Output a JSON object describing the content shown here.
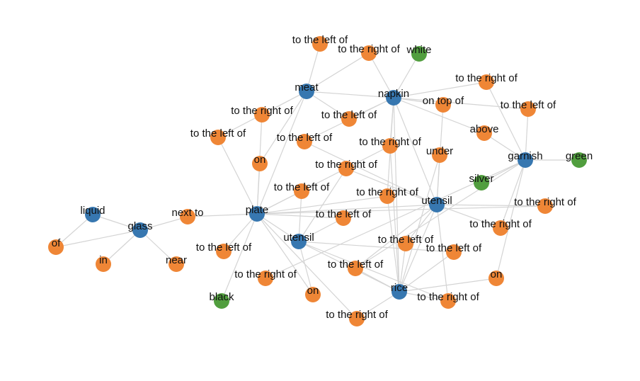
{
  "colors": {
    "object": "#3777b0",
    "relation": "#ef8636",
    "attribute": "#519e3e",
    "edge": "#d4d4d4"
  },
  "nodes": [
    {
      "id": "meat",
      "label": "meat",
      "kind": "object"
    },
    {
      "id": "napkin",
      "label": "napkin",
      "kind": "object"
    },
    {
      "id": "garnish",
      "label": "garnish",
      "kind": "object"
    },
    {
      "id": "utensil1",
      "label": "utensil",
      "kind": "object"
    },
    {
      "id": "plate",
      "label": "plate",
      "kind": "object"
    },
    {
      "id": "utensil2",
      "label": "utensil",
      "kind": "object"
    },
    {
      "id": "liquid",
      "label": "liquid",
      "kind": "object"
    },
    {
      "id": "glass",
      "label": "glass",
      "kind": "object"
    },
    {
      "id": "rice",
      "label": "rice",
      "kind": "object"
    },
    {
      "id": "white",
      "label": "white",
      "kind": "attribute"
    },
    {
      "id": "green",
      "label": "green",
      "kind": "attribute"
    },
    {
      "id": "silver",
      "label": "silver",
      "kind": "attribute"
    },
    {
      "id": "black",
      "label": "black",
      "kind": "attribute"
    },
    {
      "id": "r1",
      "label": "to the left of",
      "kind": "relation"
    },
    {
      "id": "r2",
      "label": "to the right of",
      "kind": "relation"
    },
    {
      "id": "r3",
      "label": "to the right of",
      "kind": "relation"
    },
    {
      "id": "r4",
      "label": "on top of",
      "kind": "relation"
    },
    {
      "id": "r5",
      "label": "to the left of",
      "kind": "relation"
    },
    {
      "id": "r6",
      "label": "to the right of",
      "kind": "relation"
    },
    {
      "id": "r7",
      "label": "to the left of",
      "kind": "relation"
    },
    {
      "id": "r8",
      "label": "above",
      "kind": "relation"
    },
    {
      "id": "r9",
      "label": "to the left of",
      "kind": "relation"
    },
    {
      "id": "r10",
      "label": "to the left of",
      "kind": "relation"
    },
    {
      "id": "r11",
      "label": "to the right of",
      "kind": "relation"
    },
    {
      "id": "r12",
      "label": "under",
      "kind": "relation"
    },
    {
      "id": "r13",
      "label": "on",
      "kind": "relation"
    },
    {
      "id": "r14",
      "label": "to the right of",
      "kind": "relation"
    },
    {
      "id": "r15",
      "label": "to the left of",
      "kind": "relation"
    },
    {
      "id": "r16",
      "label": "to the right of",
      "kind": "relation"
    },
    {
      "id": "r17",
      "label": "to the left of",
      "kind": "relation"
    },
    {
      "id": "r18",
      "label": "next to",
      "kind": "relation"
    },
    {
      "id": "r19",
      "label": "to the right of",
      "kind": "relation"
    },
    {
      "id": "r20",
      "label": "to the right of",
      "kind": "relation"
    },
    {
      "id": "r21",
      "label": "of",
      "kind": "relation"
    },
    {
      "id": "r22",
      "label": "in",
      "kind": "relation"
    },
    {
      "id": "r23",
      "label": "near",
      "kind": "relation"
    },
    {
      "id": "r24",
      "label": "to the left of",
      "kind": "relation"
    },
    {
      "id": "r25",
      "label": "to the left of",
      "kind": "relation"
    },
    {
      "id": "r26",
      "label": "to the left of",
      "kind": "relation"
    },
    {
      "id": "r27",
      "label": "to the left of",
      "kind": "relation"
    },
    {
      "id": "r28",
      "label": "to the right of",
      "kind": "relation"
    },
    {
      "id": "r29",
      "label": "on",
      "kind": "relation"
    },
    {
      "id": "r30",
      "label": "on",
      "kind": "relation"
    },
    {
      "id": "r31",
      "label": "to the right of",
      "kind": "relation"
    },
    {
      "id": "r32",
      "label": "to the right of",
      "kind": "relation"
    }
  ],
  "edges": [
    [
      "meat",
      "r1"
    ],
    [
      "meat",
      "r2"
    ],
    [
      "meat",
      "napkin"
    ],
    [
      "meat",
      "r3"
    ],
    [
      "meat",
      "r5"
    ],
    [
      "meat",
      "r7"
    ],
    [
      "meat",
      "r13"
    ],
    [
      "meat",
      "plate"
    ],
    [
      "napkin",
      "r2"
    ],
    [
      "napkin",
      "white"
    ],
    [
      "napkin",
      "r4"
    ],
    [
      "napkin",
      "r6"
    ],
    [
      "napkin",
      "r9"
    ],
    [
      "napkin",
      "r5"
    ],
    [
      "napkin",
      "r8"
    ],
    [
      "napkin",
      "r10"
    ],
    [
      "napkin",
      "r11"
    ],
    [
      "napkin",
      "utensil1"
    ],
    [
      "napkin",
      "rice"
    ],
    [
      "napkin",
      "r16"
    ],
    [
      "garnish",
      "r6"
    ],
    [
      "garnish",
      "r9"
    ],
    [
      "garnish",
      "r8"
    ],
    [
      "garnish",
      "green"
    ],
    [
      "garnish",
      "silver"
    ],
    [
      "garnish",
      "r28"
    ],
    [
      "garnish",
      "r20"
    ],
    [
      "garnish",
      "r30"
    ],
    [
      "garnish",
      "r27"
    ],
    [
      "utensil1",
      "r4"
    ],
    [
      "utensil1",
      "r12"
    ],
    [
      "utensil1",
      "r14"
    ],
    [
      "utensil1",
      "r19"
    ],
    [
      "utensil1",
      "r20"
    ],
    [
      "utensil1",
      "r25"
    ],
    [
      "utensil1",
      "r27"
    ],
    [
      "utensil1",
      "rice"
    ],
    [
      "utensil1",
      "r10"
    ],
    [
      "utensil1",
      "r31"
    ],
    [
      "utensil1",
      "plate"
    ],
    [
      "plate",
      "r3"
    ],
    [
      "plate",
      "r7"
    ],
    [
      "plate",
      "r11"
    ],
    [
      "plate",
      "r15"
    ],
    [
      "plate",
      "r18"
    ],
    [
      "plate",
      "r19"
    ],
    [
      "plate",
      "r24"
    ],
    [
      "plate",
      "r16"
    ],
    [
      "plate",
      "utensil2"
    ],
    [
      "plate",
      "r32"
    ],
    [
      "plate",
      "black"
    ],
    [
      "plate",
      "r29"
    ],
    [
      "plate",
      "r17"
    ],
    [
      "plate",
      "r13"
    ],
    [
      "utensil2",
      "r14"
    ],
    [
      "utensil2",
      "r26"
    ],
    [
      "utensil2",
      "r29"
    ],
    [
      "utensil2",
      "rice"
    ],
    [
      "utensil2",
      "r17"
    ],
    [
      "utensil2",
      "r15"
    ],
    [
      "utensil2",
      "r31"
    ],
    [
      "glass",
      "liquid"
    ],
    [
      "glass",
      "r18"
    ],
    [
      "glass",
      "r21"
    ],
    [
      "glass",
      "r22"
    ],
    [
      "glass",
      "r23"
    ],
    [
      "liquid",
      "r21"
    ],
    [
      "rice",
      "r25"
    ],
    [
      "rice",
      "r26"
    ],
    [
      "rice",
      "r30"
    ],
    [
      "rice",
      "r31"
    ],
    [
      "rice",
      "r12"
    ],
    [
      "rice",
      "r32"
    ],
    [
      "rice",
      "r27"
    ],
    [
      "rice",
      "r16"
    ],
    [
      "rice",
      "r11"
    ]
  ]
}
